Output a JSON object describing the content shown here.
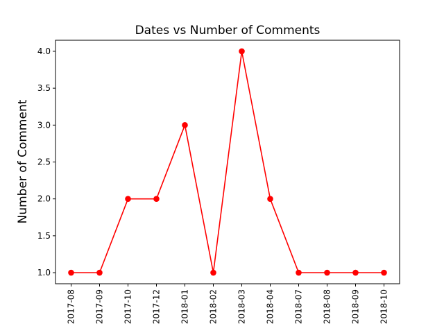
{
  "chart_data": {
    "type": "line",
    "title": "Dates vs Number of Comments",
    "xlabel": "",
    "ylabel": "Number of Comment",
    "categories": [
      "2017-08",
      "2017-09",
      "2017-10",
      "2017-12",
      "2018-01",
      "2018-02",
      "2018-03",
      "2018-04",
      "2018-07",
      "2018-08",
      "2018-09",
      "2018-10"
    ],
    "series": [
      {
        "values": [
          1,
          1,
          2,
          2,
          3,
          1,
          4,
          2,
          1,
          1,
          1,
          1
        ],
        "color": "#ff0000",
        "marker": "circle"
      }
    ],
    "y_ticks": [
      "1.0",
      "1.5",
      "2.0",
      "2.5",
      "3.0",
      "3.5",
      "4.0"
    ],
    "ylim": [
      0.85,
      4.15
    ],
    "grid": false,
    "legend": "none"
  }
}
